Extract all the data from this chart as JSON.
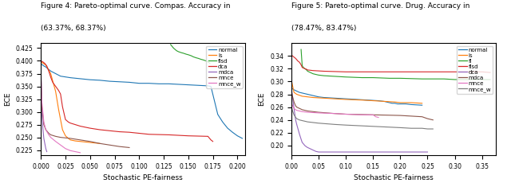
{
  "fig1": {
    "title1": "Figure 4: Pareto-optimal curve. Compas. Accuracy in",
    "title2": "(63.37%, 68.37%)",
    "xlabel": "Stochastic PE-fairness",
    "ylabel": "ECE",
    "xlim": [
      0,
      0.208
    ],
    "ylim": [
      0.215,
      0.435
    ],
    "yticks": [
      0.225,
      0.25,
      0.275,
      0.3,
      0.325,
      0.35,
      0.375,
      0.4,
      0.425
    ],
    "xticks": [
      0.0,
      0.025,
      0.05,
      0.075,
      0.1,
      0.125,
      0.15,
      0.175,
      0.2
    ],
    "series": {
      "normal": {
        "color": "#1f77b4",
        "x": [
          0.0,
          0.001,
          0.003,
          0.005,
          0.01,
          0.02,
          0.03,
          0.04,
          0.05,
          0.06,
          0.07,
          0.08,
          0.09,
          0.095,
          0.1,
          0.11,
          0.12,
          0.13,
          0.14,
          0.15,
          0.16,
          0.17,
          0.173,
          0.18,
          0.185,
          0.19,
          0.195,
          0.2,
          0.203,
          0.205
        ],
        "y": [
          0.393,
          0.393,
          0.39,
          0.388,
          0.38,
          0.37,
          0.367,
          0.365,
          0.363,
          0.362,
          0.36,
          0.359,
          0.358,
          0.357,
          0.356,
          0.356,
          0.355,
          0.355,
          0.354,
          0.353,
          0.352,
          0.351,
          0.35,
          0.295,
          0.28,
          0.268,
          0.26,
          0.253,
          0.25,
          0.248
        ]
      },
      "ls": {
        "color": "#ff7f0e",
        "x": [
          0.0,
          0.005,
          0.01,
          0.015,
          0.018,
          0.02,
          0.022,
          0.025,
          0.028,
          0.03,
          0.035,
          0.04,
          0.045,
          0.05,
          0.06
        ],
        "y": [
          0.398,
          0.392,
          0.375,
          0.34,
          0.305,
          0.285,
          0.265,
          0.253,
          0.248,
          0.245,
          0.243,
          0.242,
          0.241,
          0.24,
          0.238
        ]
      },
      "flsd": {
        "color": "#2ca02c",
        "x": [
          0.132,
          0.135,
          0.138,
          0.14,
          0.143,
          0.145,
          0.148,
          0.15,
          0.153,
          0.155,
          0.158,
          0.16,
          0.163,
          0.165,
          0.168,
          0.17,
          0.172
        ],
        "y": [
          0.432,
          0.425,
          0.42,
          0.418,
          0.416,
          0.415,
          0.413,
          0.412,
          0.41,
          0.408,
          0.406,
          0.405,
          0.403,
          0.402,
          0.4,
          0.398,
          0.395
        ]
      },
      "dca": {
        "color": "#d62728",
        "x": [
          0.0,
          0.002,
          0.004,
          0.006,
          0.008,
          0.01,
          0.012,
          0.015,
          0.018,
          0.02,
          0.022,
          0.025,
          0.028,
          0.03,
          0.035,
          0.04,
          0.05,
          0.06,
          0.07,
          0.08,
          0.09,
          0.1,
          0.11,
          0.13,
          0.15,
          0.17,
          0.173,
          0.175
        ],
        "y": [
          0.4,
          0.398,
          0.395,
          0.39,
          0.38,
          0.368,
          0.358,
          0.35,
          0.342,
          0.335,
          0.31,
          0.285,
          0.28,
          0.278,
          0.275,
          0.272,
          0.268,
          0.265,
          0.263,
          0.261,
          0.26,
          0.258,
          0.256,
          0.255,
          0.253,
          0.252,
          0.245,
          0.242
        ]
      },
      "mdca": {
        "color": "#9467bd",
        "x": [
          0.0,
          0.001,
          0.002,
          0.003,
          0.004,
          0.005,
          0.006
        ],
        "y": [
          0.385,
          0.295,
          0.268,
          0.248,
          0.238,
          0.228,
          0.222
        ]
      },
      "mnce": {
        "color": "#8c564b",
        "x": [
          0.0,
          0.001,
          0.003,
          0.005,
          0.008,
          0.01,
          0.015,
          0.02,
          0.03,
          0.04,
          0.05,
          0.06,
          0.07,
          0.08,
          0.09
        ],
        "y": [
          0.375,
          0.31,
          0.275,
          0.265,
          0.258,
          0.255,
          0.252,
          0.25,
          0.248,
          0.245,
          0.242,
          0.238,
          0.235,
          0.232,
          0.23
        ]
      },
      "mnce_w": {
        "color": "#e377c2",
        "x": [
          0.0,
          0.001,
          0.003,
          0.005,
          0.008,
          0.01,
          0.015,
          0.02,
          0.025,
          0.03,
          0.035,
          0.04
        ],
        "y": [
          0.383,
          0.32,
          0.28,
          0.265,
          0.255,
          0.25,
          0.242,
          0.235,
          0.228,
          0.224,
          0.222,
          0.22
        ]
      }
    },
    "legend_labels": [
      "normal",
      "ls",
      "flsd",
      "dca",
      "mdca",
      "mnce",
      "mnce_w"
    ],
    "legend_colors": [
      "#1f77b4",
      "#ff7f0e",
      "#2ca02c",
      "#d62728",
      "#9467bd",
      "#8c564b",
      "#e377c2"
    ]
  },
  "fig2": {
    "title1": "Figure 5: Pareto-optimal curve. Drug. Accuracy in",
    "title2": "(78.47%, 83.47%)",
    "xlabel": "Stochastic PE-fairness",
    "ylabel": "ECE",
    "xlim": [
      0,
      0.375
    ],
    "ylim": [
      0.185,
      0.36
    ],
    "yticks": [
      0.2,
      0.22,
      0.24,
      0.26,
      0.28,
      0.3,
      0.32,
      0.34
    ],
    "xticks": [
      0.0,
      0.05,
      0.1,
      0.15,
      0.2,
      0.25,
      0.3,
      0.35
    ],
    "series": {
      "normal": {
        "color": "#1f77b4",
        "x": [
          0.0,
          0.005,
          0.01,
          0.015,
          0.02,
          0.03,
          0.04,
          0.05,
          0.06,
          0.08,
          0.1,
          0.12,
          0.14,
          0.16,
          0.17,
          0.175,
          0.18,
          0.185,
          0.19,
          0.195,
          0.2,
          0.21,
          0.22,
          0.24
        ],
        "y": [
          0.29,
          0.287,
          0.285,
          0.283,
          0.282,
          0.28,
          0.278,
          0.276,
          0.275,
          0.274,
          0.273,
          0.272,
          0.271,
          0.27,
          0.269,
          0.268,
          0.267,
          0.266,
          0.266,
          0.265,
          0.265,
          0.265,
          0.264,
          0.263
        ]
      },
      "ls": {
        "color": "#ff7f0e",
        "x": [
          0.0,
          0.002,
          0.005,
          0.01,
          0.02,
          0.03,
          0.04,
          0.06,
          0.08,
          0.1,
          0.13,
          0.15,
          0.17,
          0.19,
          0.2,
          0.22,
          0.24
        ],
        "y": [
          0.303,
          0.295,
          0.283,
          0.28,
          0.277,
          0.276,
          0.275,
          0.274,
          0.273,
          0.272,
          0.271,
          0.27,
          0.269,
          0.268,
          0.267,
          0.267,
          0.266
        ]
      },
      "fl": {
        "color": "#2ca02c",
        "x": [
          0.018,
          0.02,
          0.022,
          0.025,
          0.028,
          0.03,
          0.035,
          0.04,
          0.045,
          0.05,
          0.06,
          0.08,
          0.1,
          0.13,
          0.15,
          0.18,
          0.2,
          0.24,
          0.26,
          0.28,
          0.3,
          0.32,
          0.35,
          0.365
        ],
        "y": [
          0.35,
          0.325,
          0.322,
          0.32,
          0.318,
          0.316,
          0.314,
          0.312,
          0.311,
          0.31,
          0.309,
          0.308,
          0.307,
          0.306,
          0.306,
          0.305,
          0.305,
          0.304,
          0.304,
          0.304,
          0.303,
          0.303,
          0.303,
          0.303
        ]
      },
      "flsd": {
        "color": "#d62728",
        "x": [
          0.0,
          0.002,
          0.005,
          0.008,
          0.01,
          0.012,
          0.015,
          0.018,
          0.02,
          0.022,
          0.025,
          0.028,
          0.03,
          0.04,
          0.06,
          0.1,
          0.15,
          0.2,
          0.25,
          0.3,
          0.35,
          0.365
        ],
        "y": [
          0.342,
          0.34,
          0.338,
          0.336,
          0.334,
          0.332,
          0.33,
          0.326,
          0.322,
          0.321,
          0.32,
          0.319,
          0.318,
          0.317,
          0.316,
          0.315,
          0.315,
          0.315,
          0.315,
          0.315,
          0.315,
          0.314
        ]
      },
      "dca": {
        "color": "#9467bd",
        "x": [
          0.0,
          0.002,
          0.005,
          0.008,
          0.01,
          0.015,
          0.018,
          0.02,
          0.025,
          0.028,
          0.03,
          0.035,
          0.04,
          0.045,
          0.05,
          0.06,
          0.08,
          0.1,
          0.15,
          0.2,
          0.25
        ],
        "y": [
          0.29,
          0.278,
          0.258,
          0.24,
          0.233,
          0.218,
          0.21,
          0.205,
          0.2,
          0.198,
          0.197,
          0.195,
          0.193,
          0.191,
          0.19,
          0.19,
          0.19,
          0.19,
          0.19,
          0.19,
          0.19
        ]
      },
      "mdca": {
        "color": "#8c564b",
        "x": [
          0.0,
          0.002,
          0.005,
          0.008,
          0.01,
          0.015,
          0.02,
          0.03,
          0.05,
          0.08,
          0.1,
          0.15,
          0.2,
          0.24,
          0.25,
          0.26
        ],
        "y": [
          0.285,
          0.278,
          0.268,
          0.262,
          0.26,
          0.258,
          0.256,
          0.254,
          0.252,
          0.25,
          0.249,
          0.248,
          0.247,
          0.245,
          0.242,
          0.24
        ]
      },
      "mnce": {
        "color": "#e377c2",
        "x": [
          0.0,
          0.002,
          0.005,
          0.008,
          0.01,
          0.015,
          0.02,
          0.03,
          0.05,
          0.08,
          0.1,
          0.13,
          0.15,
          0.155,
          0.16
        ],
        "y": [
          0.268,
          0.263,
          0.258,
          0.256,
          0.255,
          0.254,
          0.253,
          0.252,
          0.251,
          0.25,
          0.249,
          0.248,
          0.248,
          0.245,
          0.244
        ]
      },
      "mnce_w": {
        "color": "#7f7f7f",
        "x": [
          0.0,
          0.002,
          0.005,
          0.008,
          0.01,
          0.015,
          0.02,
          0.03,
          0.05,
          0.08,
          0.1,
          0.15,
          0.2,
          0.22,
          0.24,
          0.25,
          0.26
        ],
        "y": [
          0.262,
          0.255,
          0.248,
          0.244,
          0.242,
          0.24,
          0.239,
          0.237,
          0.235,
          0.233,
          0.232,
          0.23,
          0.228,
          0.227,
          0.227,
          0.226,
          0.226
        ]
      }
    },
    "legend_labels": [
      "normal",
      "ls",
      "fl",
      "flsd",
      "dca",
      "mdca",
      "mnce",
      "mnce_w"
    ],
    "legend_colors": [
      "#1f77b4",
      "#ff7f0e",
      "#2ca02c",
      "#d62728",
      "#9467bd",
      "#8c564b",
      "#e377c2",
      "#7f7f7f"
    ]
  }
}
